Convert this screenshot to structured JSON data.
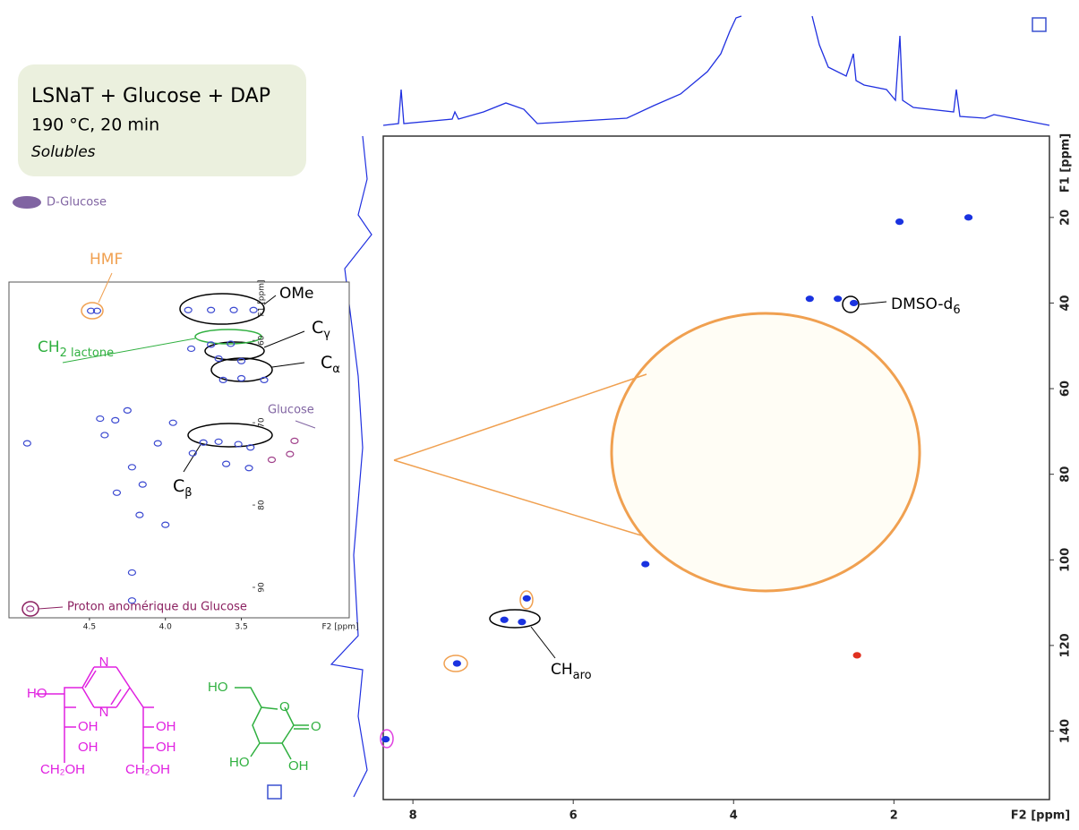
{
  "panel": {
    "title": "LSNaT + Glucose + DAP",
    "conditions": "190 °C, 20 min",
    "fraction": "Solubles"
  },
  "legend": {
    "label": "D-Glucose",
    "color": "#8064a2"
  },
  "chart_data": [
    {
      "type": "scatter",
      "xlabel": "F2 [ppm]",
      "ylabel": "F1 [ppm]",
      "xlim": [
        8.37,
        0.06
      ],
      "ylim": [
        1,
        156
      ],
      "xticks": [
        8,
        6,
        4,
        2
      ],
      "yticks": [
        20,
        40,
        60,
        80,
        100,
        120,
        140
      ],
      "series": [
        {
          "color": "#1a33e0",
          "x": [
            1.93,
            1.07,
            3.05,
            2.7,
            2.5,
            5.1,
            6.58,
            6.86,
            6.64,
            7.45,
            8.34
          ],
          "values": [
            21,
            20,
            39,
            39,
            40,
            101,
            109,
            114,
            114.5,
            124.2,
            141.9
          ]
        },
        {
          "color": "#e03020",
          "x": [
            2.46
          ],
          "values": [
            122.3
          ]
        }
      ],
      "annotations": [
        {
          "text": "DMSO-d",
          "sub": "6"
        },
        {
          "text": "CH",
          "sub": "aro"
        }
      ]
    },
    {
      "type": "scatter",
      "xlabel": "F2 [ppm]",
      "ylabel": "F1 [ppm]",
      "xlim": [
        5.03,
        2.79
      ],
      "ylim": [
        52.9,
        93.7
      ],
      "xticks": [
        4.5,
        {
          "value": 4,
          "label": "4.0"
        },
        3.5
      ],
      "yticks": [
        60,
        70,
        80,
        90
      ],
      "series": [
        {
          "color": "#3a48d0",
          "x": [
            4.49,
            4.45,
            3.85,
            3.7,
            3.55,
            3.42,
            3.83,
            3.7,
            3.57,
            3.65,
            3.5,
            3.62,
            3.5,
            3.35,
            3.75,
            3.65,
            3.52,
            3.44,
            4.91,
            4.43,
            4.4,
            4.33,
            4.25,
            4.05,
            3.95,
            4.22,
            4.15,
            4.32,
            4.17,
            4.0,
            4.22,
            4.22,
            3.45,
            3.6,
            3.82
          ],
          "values": [
            56.4,
            56.4,
            56.3,
            56.3,
            56.3,
            56.3,
            61,
            60.5,
            60.4,
            62.2,
            62.5,
            64.8,
            64.6,
            64.8,
            72.4,
            72.3,
            72.6,
            73,
            72.5,
            69.5,
            71.5,
            69.7,
            68.5,
            72.5,
            70,
            75.4,
            77.5,
            78.5,
            81.2,
            82.4,
            88.2,
            91.6,
            75.5,
            75,
            73.7
          ]
        },
        {
          "color": "#a0408a",
          "x": [
            3.15,
            3.3,
            3.18,
            4.89
          ],
          "values": [
            72.2,
            74.5,
            73.8,
            92.6
          ]
        }
      ],
      "annotations": [
        {
          "text": "HMF"
        },
        {
          "text": "OMe"
        },
        {
          "text": "C",
          "sub": "γ"
        },
        {
          "text": "C",
          "sub": "α"
        },
        {
          "text": "C",
          "sub": "β"
        },
        {
          "text": "CH",
          "sub": "2 lactone"
        },
        {
          "text": "Glucose"
        },
        {
          "text": "Proton anomérique du Glucose"
        }
      ]
    }
  ],
  "structures": {
    "pyrazine": [
      "N",
      "N",
      "HO",
      "OH",
      "OH",
      "OH",
      "OH",
      "CH₂OH",
      "CH₂OH"
    ],
    "lactone": [
      "HO",
      "O",
      "O",
      "HO",
      "OH"
    ]
  }
}
